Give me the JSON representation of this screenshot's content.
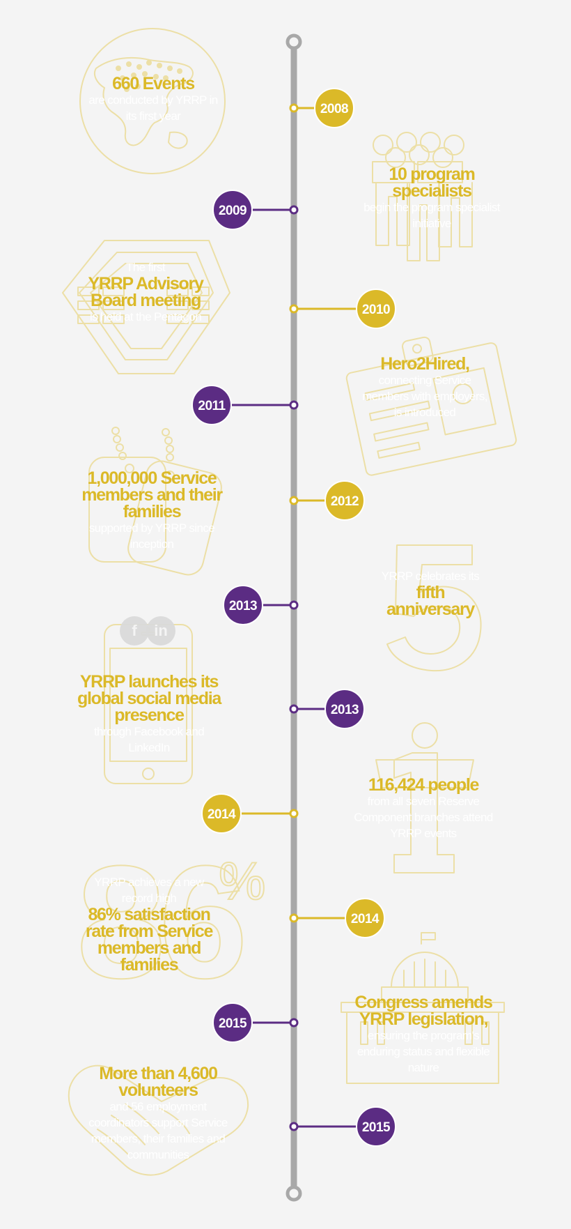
{
  "colors": {
    "gold": "#dbb928",
    "purple": "#5b2c83",
    "spine": "#a8a8a8",
    "icon": "#ecdfa6",
    "background": "#f4f4f4"
  },
  "events": [
    {
      "year": "2008",
      "side": "right",
      "color": "gold",
      "icon": "globe-icon",
      "headline": "660 Events",
      "pre": "",
      "post": "are conducted by YRRP in its first year"
    },
    {
      "year": "2009",
      "side": "left",
      "color": "purple",
      "icon": "people-icon",
      "headline": "10 program specialists",
      "pre": "",
      "post": "begin the program specialist initiative"
    },
    {
      "year": "2010",
      "side": "right",
      "color": "gold",
      "icon": "pentagon-icon",
      "headline": "YRRP Advisory Board meeting",
      "pre": "The first",
      "post": "is held at the Pentagon"
    },
    {
      "year": "2011",
      "side": "left",
      "color": "purple",
      "icon": "id-badge-icon",
      "headline": "Hero2Hired,",
      "pre": "",
      "post": "connecting Service members with employers, is introduced"
    },
    {
      "year": "2012",
      "side": "right",
      "color": "gold",
      "icon": "dog-tags-icon",
      "headline": "1,000,000 Service members and their families",
      "pre": "",
      "post": "supported by YRRP since inception"
    },
    {
      "year": "2013",
      "side": "left",
      "color": "purple",
      "icon": "number-five-icon",
      "headline": "fifth anniversary",
      "pre": "YRRP celebrates its",
      "post": ""
    },
    {
      "year": "2013",
      "side": "right",
      "color": "purple",
      "icon": "smartphone-icon",
      "headline": "YRRP launches its global social media presence",
      "pre": "",
      "post": "through Facebook and LinkedIn",
      "social": [
        "f",
        "in"
      ]
    },
    {
      "year": "2014",
      "side": "left",
      "color": "gold",
      "icon": "number-one-person-icon",
      "headline": "116,424 people",
      "pre": "",
      "post": "from all seven Reserve Component branches attend YRRP events"
    },
    {
      "year": "2014",
      "side": "right",
      "color": "gold",
      "icon": "percent-icon",
      "headline": "86% satisfaction rate from Service members and families",
      "pre": "YRRP achieves a new record high",
      "post": "",
      "big_number": "86",
      "percent_sign": "%"
    },
    {
      "year": "2015",
      "side": "left",
      "color": "purple",
      "icon": "capitol-icon",
      "headline": "Congress amends YRRP legislation,",
      "pre": "",
      "post": "ensuring the program's enduring status and flexible nature"
    },
    {
      "year": "2015",
      "side": "right",
      "color": "purple",
      "icon": "handshake-icon",
      "headline": "More than 4,600 volunteers",
      "pre": "",
      "post": "and 56 employment coordinators support Service members, their families and communities"
    }
  ]
}
